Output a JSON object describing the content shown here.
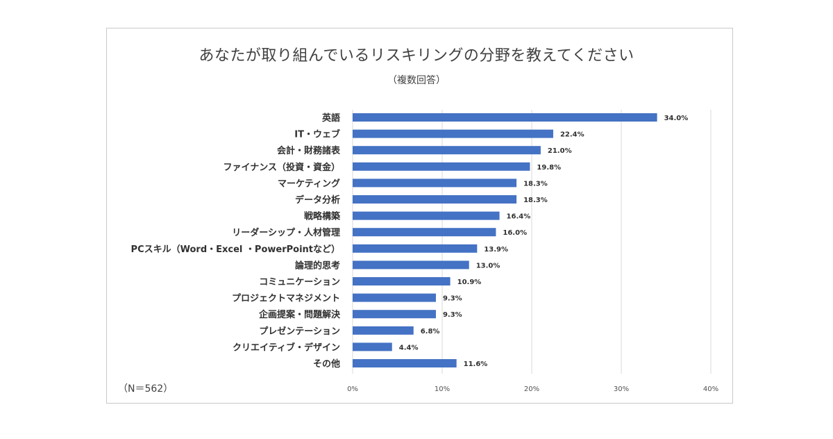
{
  "chart_data": {
    "type": "bar",
    "orientation": "horizontal",
    "title": "あなたが取り組んでいるリスキリングの分野を教えてください",
    "subtitle": "（複数回答）",
    "note": "（N＝562）",
    "categories": [
      "英語",
      "IT・ウェブ",
      "会計・財務諸表",
      "ファイナンス（投資・資金）",
      "マーケティング",
      "データ分析",
      "戦略構築",
      "リーダーシップ・人材管理",
      "PCスキル（Word・Excel ・PowerPointなど）",
      "論理的思考",
      "コミュニケーション",
      "プロジェクトマネジメント",
      "企画提案・問題解決",
      "プレゼンテーション",
      "クリエイティブ・デザイン",
      "その他"
    ],
    "values": [
      34.0,
      22.4,
      21.0,
      19.8,
      18.3,
      18.3,
      16.4,
      16.0,
      13.9,
      13.0,
      10.9,
      9.3,
      9.3,
      6.8,
      4.4,
      11.6
    ],
    "value_labels": [
      "34.0%",
      "22.4%",
      "21.0%",
      "19.8%",
      "18.3%",
      "18.3%",
      "16.4%",
      "16.0%",
      "13.9%",
      "13.0%",
      "10.9%",
      "9.3%",
      "9.3%",
      "6.8%",
      "4.4%",
      "11.6%"
    ],
    "xlim": [
      0,
      40
    ],
    "x_ticks": [
      "0%",
      "10%",
      "20%",
      "30%",
      "40%"
    ],
    "grid": "vertical",
    "bar_color": "#4472c4",
    "grid_color": "#d9d9d9"
  }
}
